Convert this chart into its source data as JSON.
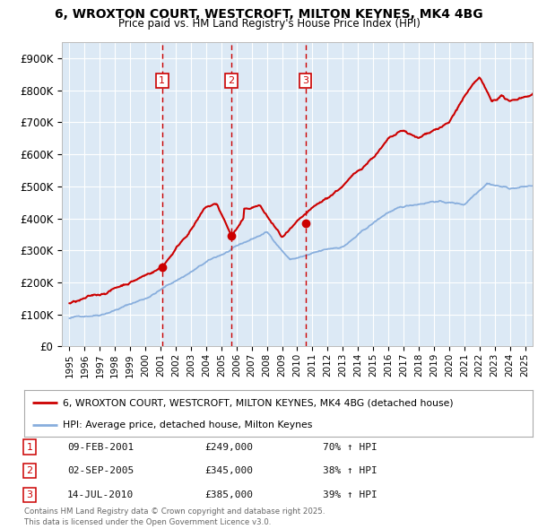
{
  "title_line1": "6, WROXTON COURT, WESTCROFT, MILTON KEYNES, MK4 4BG",
  "title_line2": "Price paid vs. HM Land Registry's House Price Index (HPI)",
  "ylim": [
    0,
    950000
  ],
  "yticks": [
    0,
    100000,
    200000,
    300000,
    400000,
    500000,
    600000,
    700000,
    800000,
    900000
  ],
  "ytick_labels": [
    "£0",
    "£100K",
    "£200K",
    "£300K",
    "£400K",
    "£500K",
    "£600K",
    "£700K",
    "£800K",
    "£900K"
  ],
  "plot_bg": "#dce9f5",
  "grid_color": "#ffffff",
  "red_line_color": "#cc0000",
  "blue_line_color": "#88aedd",
  "sales": [
    {
      "date_num": 2001.1,
      "price": 249000,
      "label": "1",
      "date_str": "09-FEB-2001",
      "price_str": "£249,000",
      "hpi_str": "70% ↑ HPI"
    },
    {
      "date_num": 2005.67,
      "price": 345000,
      "label": "2",
      "date_str": "02-SEP-2005",
      "price_str": "£345,000",
      "hpi_str": "38% ↑ HPI"
    },
    {
      "date_num": 2010.54,
      "price": 385000,
      "label": "3",
      "date_str": "14-JUL-2010",
      "price_str": "£385,000",
      "hpi_str": "39% ↑ HPI"
    }
  ],
  "legend_line1": "6, WROXTON COURT, WESTCROFT, MILTON KEYNES, MK4 4BG (detached house)",
  "legend_line2": "HPI: Average price, detached house, Milton Keynes",
  "footnote": "Contains HM Land Registry data © Crown copyright and database right 2025.\nThis data is licensed under the Open Government Licence v3.0.",
  "xlim": [
    1994.5,
    2025.5
  ],
  "xticks": [
    1995,
    1996,
    1997,
    1998,
    1999,
    2000,
    2001,
    2002,
    2003,
    2004,
    2005,
    2006,
    2007,
    2008,
    2009,
    2010,
    2011,
    2012,
    2013,
    2014,
    2015,
    2016,
    2017,
    2018,
    2019,
    2020,
    2021,
    2022,
    2023,
    2024,
    2025
  ]
}
